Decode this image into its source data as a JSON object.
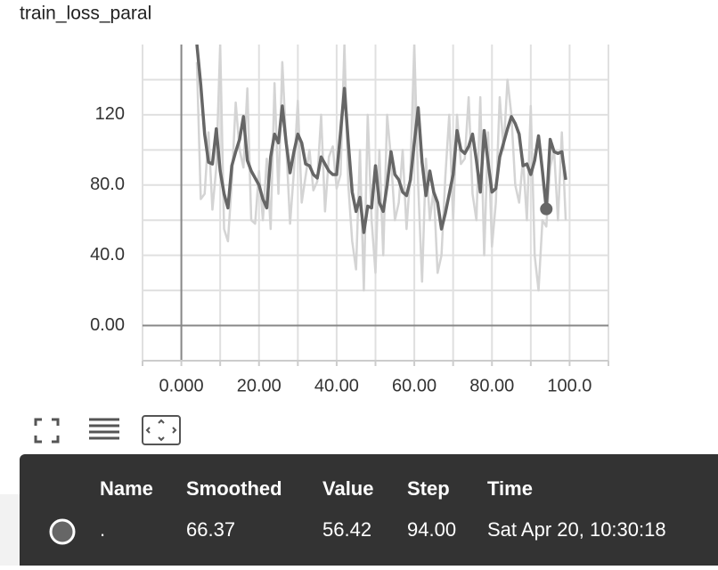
{
  "chart_data": {
    "type": "line",
    "title": "train_loss_paral",
    "x": [
      4,
      5,
      6,
      7,
      8,
      9,
      10,
      11,
      12,
      13,
      14,
      15,
      16,
      17,
      18,
      19,
      20,
      21,
      22,
      23,
      24,
      25,
      26,
      27,
      28,
      29,
      30,
      31,
      32,
      33,
      34,
      35,
      36,
      37,
      38,
      39,
      40,
      41,
      42,
      43,
      44,
      45,
      46,
      47,
      48,
      49,
      50,
      51,
      52,
      53,
      54,
      55,
      56,
      57,
      58,
      59,
      60,
      61,
      62,
      63,
      64,
      65,
      66,
      67,
      68,
      69,
      70,
      71,
      72,
      73,
      74,
      75,
      76,
      77,
      78,
      79,
      80,
      81,
      82,
      83,
      84,
      85,
      86,
      87,
      88,
      89,
      90,
      91,
      92,
      93,
      94,
      95,
      96,
      97,
      98,
      99
    ],
    "series": [
      {
        "color": "#d4d4d4",
        "values": [
          150,
          72,
          75,
          110,
          66,
          90,
          160,
          55,
          48,
          82,
          127,
          100,
          90,
          135,
          60,
          58,
          88,
          60,
          95,
          55,
          138,
          75,
          150,
          103,
          58,
          88,
          128,
          70,
          85,
          100,
          77,
          82,
          120,
          65,
          96,
          102,
          78,
          86,
          160,
          80,
          48,
          32,
          100,
          20,
          120,
          60,
          30,
          100,
          40,
          120,
          95,
          60,
          70,
          100,
          55,
          88,
          160,
          80,
          25,
          95,
          60,
          78,
          30,
          40,
          85,
          120,
          60,
          120,
          92,
          95,
          130,
          75,
          60,
          130,
          40,
          110,
          45,
          70,
          130,
          100,
          140,
          120,
          80,
          70,
          95,
          60,
          125,
          40,
          20,
          60,
          56.42,
          90,
          100,
          60,
          110,
          60
        ]
      },
      {
        "color": "#666666",
        "values": [
          160,
          137,
          109,
          93,
          92,
          112,
          88,
          75,
          67,
          91,
          99,
          106,
          119,
          94,
          88,
          84,
          80,
          72,
          67,
          96,
          109,
          104,
          125,
          104,
          87,
          99,
          109,
          104,
          92,
          91,
          86,
          84,
          96,
          92,
          88,
          86,
          86,
          110,
          135,
          104,
          76,
          65,
          73,
          53,
          68,
          67,
          91,
          70,
          65,
          80,
          99,
          86,
          83,
          76,
          74,
          83,
          104,
          124,
          93,
          74,
          88,
          76,
          70,
          55,
          64,
          75,
          86,
          111,
          100,
          98,
          102,
          109,
          94,
          76,
          111,
          93,
          76,
          78,
          96,
          104,
          112,
          119,
          115,
          109,
          91,
          92,
          86,
          94,
          108,
          88,
          66.37,
          106,
          99,
          98,
          99,
          83
        ]
      }
    ],
    "xlim": [
      -10,
      110
    ],
    "xticks": [
      {
        "value": 0,
        "label": "0.000"
      },
      {
        "value": 20,
        "label": "20.00"
      },
      {
        "value": 40,
        "label": "40.00"
      },
      {
        "value": 60,
        "label": "60.00"
      },
      {
        "value": 80,
        "label": "80.00"
      },
      {
        "value": 100,
        "label": "100.0"
      }
    ],
    "xminor": [
      -10,
      10,
      30,
      50,
      70,
      90,
      110
    ],
    "ylim": [
      -20,
      160
    ],
    "yticks": [
      {
        "value": 0,
        "label": "0.00"
      },
      {
        "value": 40,
        "label": "40.0"
      },
      {
        "value": 80,
        "label": "80.0"
      },
      120
    ],
    "yminor": [
      20,
      60,
      100,
      140
    ],
    "grid": true
  },
  "tooltip": {
    "headers": [
      "Name",
      "Smoothed",
      "Value",
      "Step",
      "Time"
    ],
    "rows": [
      [
        ".",
        "66.37",
        "56.42",
        "94.00",
        "Sat Apr 20, 10:30:18"
      ]
    ]
  }
}
